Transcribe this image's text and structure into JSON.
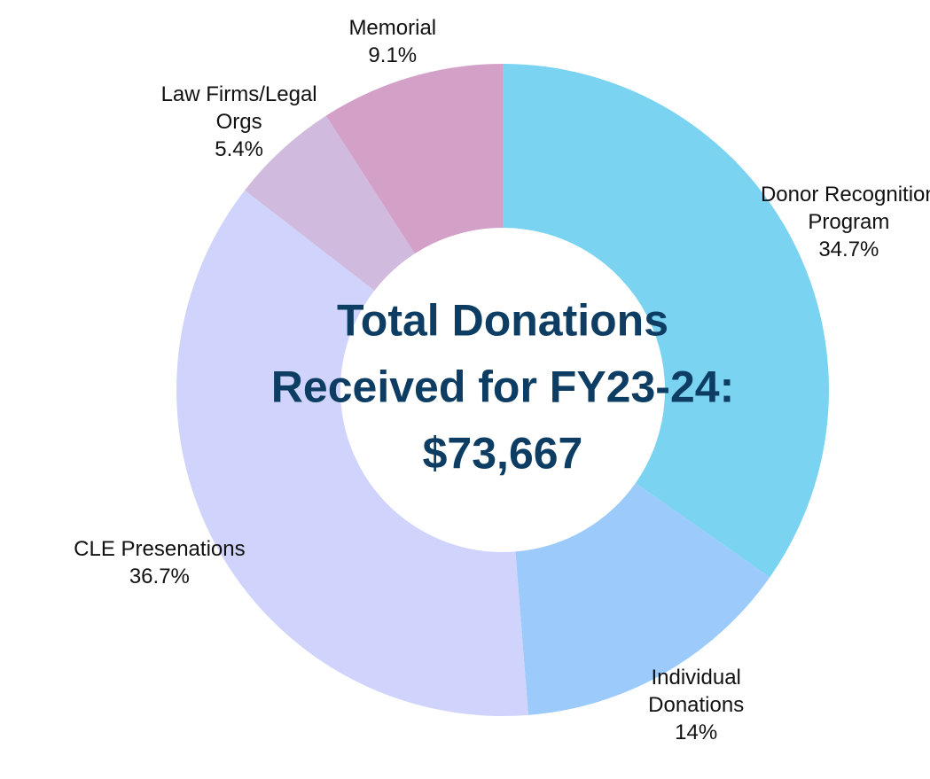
{
  "chart_data": {
    "type": "donut",
    "categories": [
      "Donor Recognition Program",
      "Individual Donations",
      "CLE Presenations",
      "Law Firms/Legal Orgs",
      "Memorial"
    ],
    "values": [
      34.7,
      14,
      36.7,
      5.4,
      9.1
    ],
    "value_labels": [
      "34.7%",
      "14%",
      "36.7%",
      "5.4%",
      "9.1%"
    ],
    "colors": [
      "#7ad3f0",
      "#9ccbfb",
      "#d0d4fd",
      "#d0bade",
      "#d3a1c8"
    ],
    "annotation": "Total Donations Received for FY23-24: $73,667"
  }
}
